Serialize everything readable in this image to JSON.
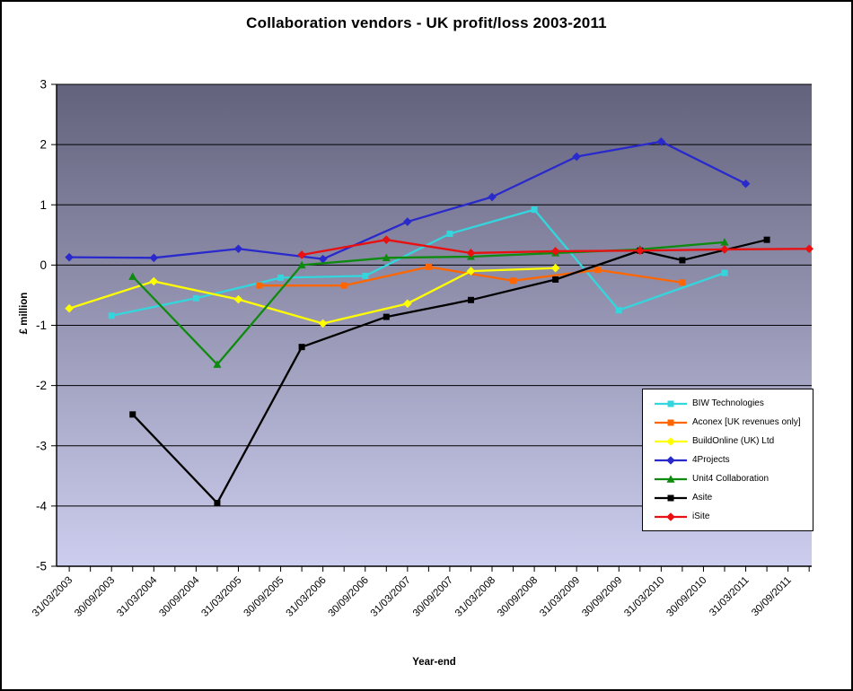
{
  "chart_data": {
    "type": "line",
    "title": "Collaboration  vendors - UK profit/loss  2003-2011",
    "xlabel": "Year-end",
    "ylabel": "£ million",
    "ylim": [
      -5,
      3
    ],
    "y_ticks": [
      3,
      2,
      1,
      0,
      -1,
      -2,
      -3,
      -4,
      -5
    ],
    "x_axis": {
      "min_year": 2003.1,
      "max_year": 2012.03,
      "tick_start": 2003.25,
      "tick_end": 2012.0,
      "minor_tick_step": 0.25,
      "label_step": 0.5
    },
    "x_tick_labels": [
      "31/03/2003",
      "30/09/2003",
      "31/03/2004",
      "30/09/2004",
      "31/03/2005",
      "30/09/2005",
      "31/03/2006",
      "30/09/2006",
      "31/03/2007",
      "30/09/2007",
      "31/03/2008",
      "30/09/2008",
      "31/03/2009",
      "30/09/2009",
      "31/03/2010",
      "30/09/2010",
      "31/03/2011",
      "30/09/2011"
    ],
    "grid": "horizontal black lines at every 1 unit",
    "legend_position": "lower-right overlay box",
    "plot_bg_gradient_top": "#62627C",
    "plot_bg_gradient_bottom": "#CDCDEF",
    "series": [
      {
        "name": "BIW Technologies",
        "color": "#33D6DC",
        "marker": "square",
        "points": [
          {
            "date": "30/09/2003",
            "x": 2003.75,
            "y": -0.84
          },
          {
            "date": "30/09/2004",
            "x": 2004.75,
            "y": -0.55
          },
          {
            "date": "30/09/2005",
            "x": 2005.75,
            "y": -0.21
          },
          {
            "date": "30/09/2006",
            "x": 2006.75,
            "y": -0.18
          },
          {
            "date": "30/09/2007",
            "x": 2007.75,
            "y": 0.52
          },
          {
            "date": "30/09/2008",
            "x": 2008.75,
            "y": 0.92
          },
          {
            "date": "30/09/2009",
            "x": 2009.75,
            "y": -0.75
          },
          {
            "date": "31/12/2010",
            "x": 2011.0,
            "y": -0.13
          }
        ]
      },
      {
        "name": "Aconex [UK revenues only]",
        "color": "#FF6600",
        "marker": "square",
        "points": [
          {
            "date": "30/06/2005",
            "x": 2005.5,
            "y": -0.34
          },
          {
            "date": "30/06/2006",
            "x": 2006.5,
            "y": -0.34
          },
          {
            "date": "30/06/2007",
            "x": 2007.5,
            "y": -0.03
          },
          {
            "date": "30/06/2008",
            "x": 2008.5,
            "y": -0.26
          },
          {
            "date": "30/06/2009",
            "x": 2009.5,
            "y": -0.08
          },
          {
            "date": "30/06/2010",
            "x": 2010.5,
            "y": -0.29
          }
        ]
      },
      {
        "name": "BuildOnline (UK) Ltd",
        "color": "#FFFF00",
        "marker": "diamond",
        "points": [
          {
            "date": "31/03/2003",
            "x": 2003.25,
            "y": -0.72
          },
          {
            "date": "31/03/2004",
            "x": 2004.25,
            "y": -0.27
          },
          {
            "date": "31/03/2005",
            "x": 2005.25,
            "y": -0.57
          },
          {
            "date": "31/03/2006",
            "x": 2006.25,
            "y": -0.97
          },
          {
            "date": "31/03/2007",
            "x": 2007.25,
            "y": -0.64
          },
          {
            "date": "31/12/2007",
            "x": 2008.0,
            "y": -0.1
          },
          {
            "date": "31/12/2008",
            "x": 2009.0,
            "y": -0.05
          }
        ]
      },
      {
        "name": "4Projects",
        "color": "#2929CC",
        "marker": "diamond",
        "points": [
          {
            "date": "31/03/2003",
            "x": 2003.25,
            "y": 0.13
          },
          {
            "date": "31/03/2004",
            "x": 2004.25,
            "y": 0.12
          },
          {
            "date": "31/03/2005",
            "x": 2005.25,
            "y": 0.27
          },
          {
            "date": "31/03/2006",
            "x": 2006.25,
            "y": 0.1
          },
          {
            "date": "31/03/2007",
            "x": 2007.25,
            "y": 0.72
          },
          {
            "date": "31/03/2008",
            "x": 2008.25,
            "y": 1.13
          },
          {
            "date": "31/03/2009",
            "x": 2009.25,
            "y": 1.8
          },
          {
            "date": "31/03/2010",
            "x": 2010.25,
            "y": 2.05
          },
          {
            "date": "31/03/2011",
            "x": 2011.25,
            "y": 1.35
          }
        ]
      },
      {
        "name": "Unit4 Collaboration",
        "color": "#0E8A0E",
        "marker": "triangle",
        "points": [
          {
            "date": "31/12/2003",
            "x": 2004.0,
            "y": -0.19
          },
          {
            "date": "31/12/2004",
            "x": 2005.0,
            "y": -1.65
          },
          {
            "date": "31/12/2005",
            "x": 2006.0,
            "y": 0.0
          },
          {
            "date": "31/12/2006",
            "x": 2007.0,
            "y": 0.12
          },
          {
            "date": "31/12/2007",
            "x": 2008.0,
            "y": 0.14
          },
          {
            "date": "31/12/2008",
            "x": 2009.0,
            "y": 0.2
          },
          {
            "date": "31/12/2009",
            "x": 2010.0,
            "y": 0.26
          },
          {
            "date": "31/12/2010",
            "x": 2011.0,
            "y": 0.38
          }
        ]
      },
      {
        "name": "Asite",
        "color": "#000000",
        "marker": "square",
        "points": [
          {
            "date": "31/12/2003",
            "x": 2004.0,
            "y": -2.48
          },
          {
            "date": "31/12/2004",
            "x": 2005.0,
            "y": -3.95
          },
          {
            "date": "31/12/2005",
            "x": 2006.0,
            "y": -1.36
          },
          {
            "date": "31/12/2006",
            "x": 2007.0,
            "y": -0.86
          },
          {
            "date": "31/12/2007",
            "x": 2008.0,
            "y": -0.58
          },
          {
            "date": "31/12/2008",
            "x": 2009.0,
            "y": -0.24
          },
          {
            "date": "31/12/2009",
            "x": 2010.0,
            "y": 0.24
          },
          {
            "date": "30/06/2010",
            "x": 2010.5,
            "y": 0.08
          },
          {
            "date": "30/06/2011",
            "x": 2011.5,
            "y": 0.42
          }
        ]
      },
      {
        "name": "iSite",
        "color": "#E81010",
        "marker": "diamond",
        "points": [
          {
            "date": "31/12/2005",
            "x": 2006.0,
            "y": 0.17
          },
          {
            "date": "31/12/2006",
            "x": 2007.0,
            "y": 0.42
          },
          {
            "date": "31/12/2007",
            "x": 2008.0,
            "y": 0.2
          },
          {
            "date": "31/12/2008",
            "x": 2009.0,
            "y": 0.23
          },
          {
            "date": "31/12/2009",
            "x": 2010.0,
            "y": 0.24
          },
          {
            "date": "31/12/2010",
            "x": 2011.0,
            "y": 0.26
          },
          {
            "date": "31/12/2011",
            "x": 2012.0,
            "y": 0.27
          }
        ]
      }
    ]
  }
}
